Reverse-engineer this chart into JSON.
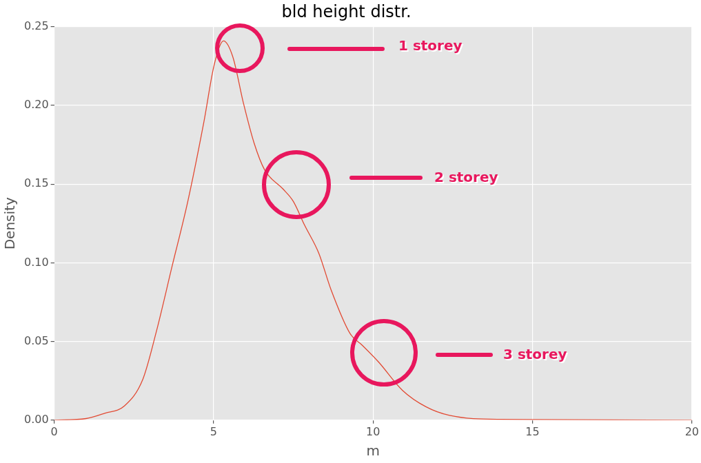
{
  "chart_data": {
    "type": "line",
    "title": "bld height distr.",
    "xlabel": "m",
    "ylabel": "Density",
    "x": [
      0,
      1,
      1.6,
      2.2,
      2.78,
      3.2,
      3.7,
      4.19,
      4.69,
      5.02,
      5.31,
      5.6,
      5.94,
      6.27,
      6.6,
      7.17,
      7.5,
      7.85,
      8.3,
      8.68,
      9.28,
      9.64,
      10.17,
      10.92,
      11.66,
      12.4,
      14,
      20
    ],
    "series": [
      {
        "color": "#e24a33",
        "values": [
          0,
          0.001,
          0.0045,
          0.009,
          0.026,
          0.056,
          0.098,
          0.139,
          0.189,
          0.226,
          0.241,
          0.231,
          0.201,
          0.176,
          0.159,
          0.147,
          0.139,
          0.124,
          0.106,
          0.083,
          0.055,
          0.048,
          0.037,
          0.019,
          0.0085,
          0.003,
          0.0005,
          0
        ]
      }
    ],
    "xlim": [
      0,
      20
    ],
    "xticks": [
      0,
      5,
      10,
      15,
      20
    ],
    "ylim": [
      0,
      0.25
    ],
    "yticks": [
      {
        "value": 0,
        "label": "0.00"
      },
      {
        "value": 0.05,
        "label": "0.05"
      },
      {
        "value": 0.1,
        "label": "0.10"
      },
      {
        "value": 0.15,
        "label": "0.15"
      },
      {
        "value": 0.2,
        "label": "0.20"
      },
      {
        "value": 0.25,
        "label": "0.25"
      }
    ],
    "grid": true,
    "legend": false,
    "marker": "none",
    "line_style": "solid",
    "annotations": [
      "1 storey",
      "2 storey",
      "3 storey"
    ]
  }
}
